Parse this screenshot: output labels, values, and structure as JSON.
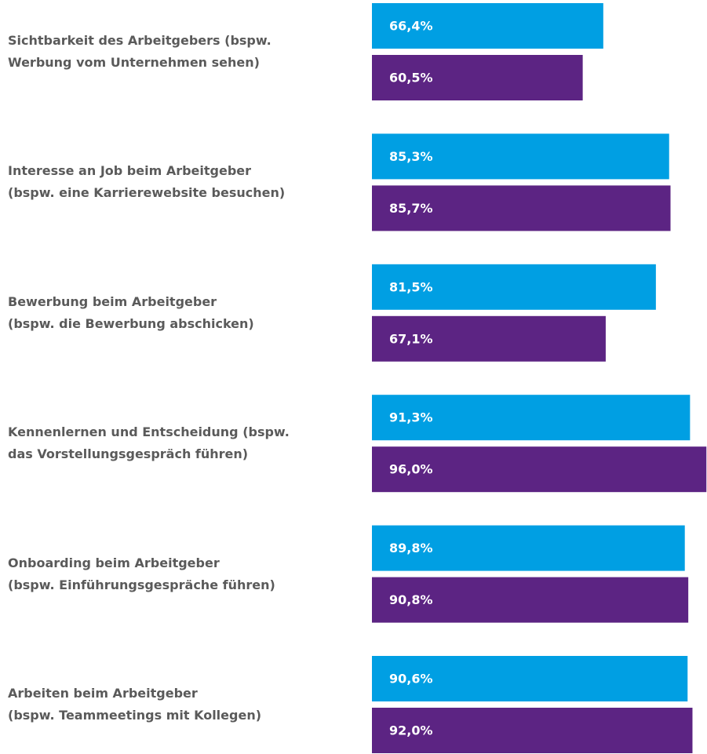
{
  "chart_data": {
    "type": "bar",
    "orientation": "horizontal",
    "categories": [
      "Sichtbarkeit des Arbeitgebers (bspw.\nWerbung vom Unternehmen sehen)",
      "Interesse an Job beim Arbeitgeber\n(bspw. eine Karrierewebsite besuchen)",
      "Bewerbung beim Arbeitgeber\n(bspw. die Bewerbung abschicken)",
      "Kennenlernen und Entscheidung (bspw.\ndas Vorstellungsgespräch führen)",
      "Onboarding beim Arbeitgeber\n(bspw. Einführungsgespräche führen)",
      "Arbeiten beim Arbeitgeber\n(bspw. Teammeetings mit Kollegen)"
    ],
    "series": [
      {
        "color": "#009fe3",
        "values": [
          66.4,
          85.3,
          81.5,
          91.3,
          89.8,
          90.6
        ],
        "value_labels": [
          "66,4%",
          "85,3%",
          "81,5%",
          "91,3%",
          "89,8%",
          "90,6%"
        ]
      },
      {
        "color": "#5c2483",
        "values": [
          60.5,
          85.7,
          67.1,
          96.0,
          90.8,
          92.0
        ],
        "value_labels": [
          "60,5%",
          "85,7%",
          "67,1%",
          "96,0%",
          "90,8%",
          "92,0%"
        ]
      }
    ],
    "xlim": [
      0,
      100
    ]
  }
}
